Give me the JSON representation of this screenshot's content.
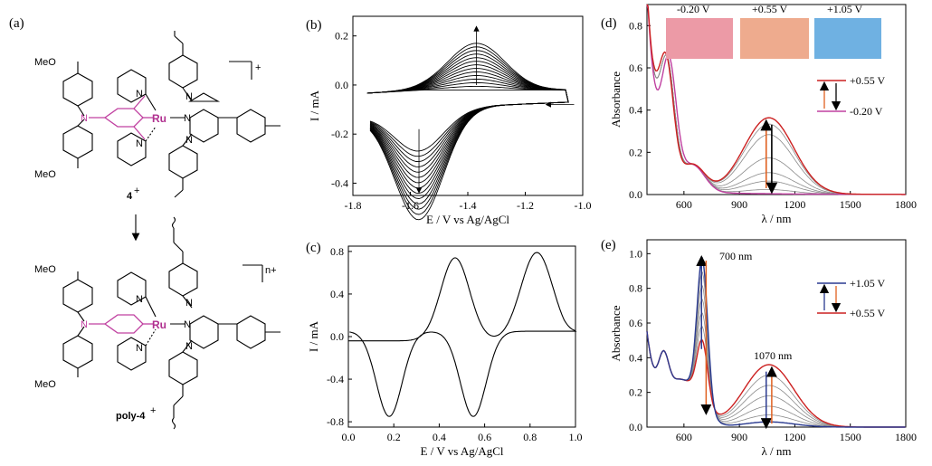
{
  "panels": {
    "a": {
      "label": "(a)",
      "top_molecule_label": "4",
      "top_molecule_charge": "+",
      "bottom_molecule_label": "poly-4",
      "bottom_molecule_charge": "+",
      "top_bracket_charge": "+",
      "bottom_bracket_charge": "n+",
      "metal": "Ru",
      "substituent": "MeO",
      "nitrogen": "N"
    },
    "b": {
      "label": "(b)"
    },
    "c": {
      "label": "(c)"
    },
    "d": {
      "label": "(d)",
      "photos": [
        "-0.20 V",
        "+0.55 V",
        "+1.05 V"
      ],
      "legend": [
        "+0.55 V",
        "-0.20 V"
      ]
    },
    "e": {
      "label": "(e)",
      "legend": [
        "+1.05 V",
        "+0.55 V"
      ],
      "annotations": [
        "700 nm",
        "1070 nm"
      ]
    }
  },
  "colors": {
    "magenta": "#c040a0",
    "red": "#cc2020",
    "orange": "#e06020",
    "navy": "#2a3a90",
    "gray": "#808080",
    "photo_pink": "#ec9aa6",
    "photo_peach": "#eeab8e",
    "photo_blue": "#6fb1e2"
  },
  "chart_data": [
    {
      "id": "b",
      "type": "line",
      "xlabel": "E / V vs Ag/AgCl",
      "ylabel": "I / mA",
      "xlim": [
        -1.8,
        -1.0
      ],
      "ylim": [
        -0.45,
        0.28
      ],
      "xticks": [
        "-1.8",
        "-1.6",
        "-1.4",
        "-1.2",
        "-1.0"
      ],
      "yticks": [
        "-0.4",
        "-0.2",
        "0.0",
        "0.2"
      ],
      "description_note": "repetitive cyclic voltammograms with growing peaks",
      "peak_anodic": {
        "x": -1.37,
        "y_first": 0.0,
        "y_last": 0.19
      },
      "peak_cathodic": {
        "x": -1.57,
        "y_first": -0.16,
        "y_last": -0.44
      },
      "n_cycles": 14
    },
    {
      "id": "c",
      "type": "line",
      "xlabel": "E / V vs Ag/AgCl",
      "ylabel": "I / mA",
      "xlim": [
        0.0,
        1.0
      ],
      "ylim": [
        -0.85,
        0.85
      ],
      "xticks": [
        "0.0",
        "0.2",
        "0.4",
        "0.6",
        "0.8",
        "1.0"
      ],
      "yticks": [
        "-0.8",
        "-0.4",
        "0.0",
        "0.4",
        "0.8"
      ],
      "peaks": [
        {
          "x": 0.47,
          "y": 0.75
        },
        {
          "x": 0.83,
          "y": 0.8
        },
        {
          "x": 0.18,
          "y": -0.75
        },
        {
          "x": 0.55,
          "y": -0.75
        }
      ]
    },
    {
      "id": "d",
      "type": "line",
      "xlabel": "λ / nm",
      "ylabel": "Absorbance",
      "xlim": [
        400,
        1800
      ],
      "ylim": [
        0.0,
        0.9
      ],
      "xticks": [
        "600",
        "900",
        "1200",
        "1500",
        "1800"
      ],
      "yticks": [
        "0.0",
        "0.2",
        "0.4",
        "0.6",
        "0.8"
      ],
      "series": [
        {
          "name": "-0.20 V",
          "color": "magenta",
          "peak_vis": [
            520,
            0.52
          ],
          "nir_peak": [
            1060,
            0.0
          ]
        },
        {
          "name": "+0.55 V",
          "color": "red",
          "peak_vis": [
            505,
            0.5
          ],
          "nir_peak": [
            1060,
            0.36
          ]
        }
      ],
      "intermediate_nir_peaks": [
        0.02,
        0.06,
        0.1,
        0.17,
        0.28,
        0.33
      ]
    },
    {
      "id": "e",
      "type": "line",
      "xlabel": "λ / nm",
      "ylabel": "Absorbance",
      "xlim": [
        400,
        1800
      ],
      "ylim": [
        0.0,
        1.08
      ],
      "xticks": [
        "600",
        "900",
        "1200",
        "1500",
        "1800"
      ],
      "yticks": [
        "0.0",
        "0.2",
        "0.4",
        "0.6",
        "0.8",
        "1.0"
      ],
      "series": [
        {
          "name": "+0.55 V",
          "color": "red",
          "peak_700": 0.52,
          "peak_1070": 0.36
        },
        {
          "name": "+1.05 V",
          "color": "navy",
          "peak_700": 1.0,
          "peak_1070": 0.03
        }
      ],
      "intermediate_peak_700": [
        0.6,
        0.68,
        0.76,
        0.84,
        0.92
      ],
      "intermediate_peak_1070": [
        0.3,
        0.24,
        0.18,
        0.12,
        0.07
      ]
    }
  ]
}
